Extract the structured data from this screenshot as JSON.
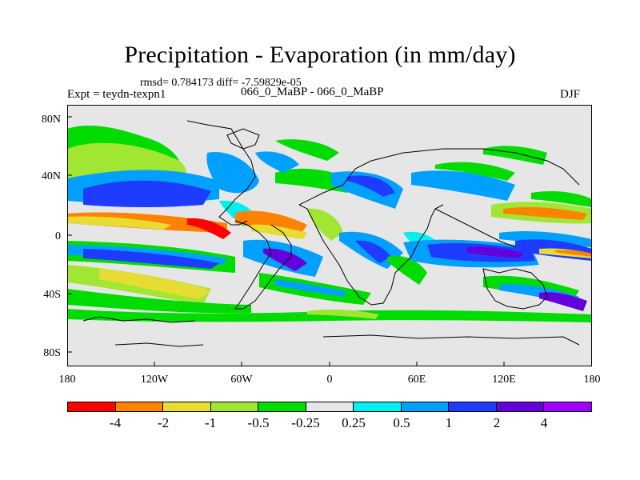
{
  "title": "Precipitation - Evaporation (in mm/day)",
  "subtitle": "rmsd= 0.784173 diff= -7.59829e-05",
  "experiment": "Expt = teydn-texpn1",
  "period": "066_0_MaBP - 066_0_MaBP",
  "season": "DJF",
  "lat_labels": [
    "80N",
    "40N",
    "0",
    "40S",
    "80S"
  ],
  "lon_labels": [
    "180",
    "120W",
    "60W",
    "0",
    "60E",
    "120E",
    "180"
  ],
  "colorbar": {
    "labels": [
      "-4",
      "-2",
      "-1",
      "-0.5",
      "-0.25",
      "0.25",
      "0.5",
      "1",
      "2",
      "4"
    ],
    "colors": [
      "#ff0000",
      "#ff8200",
      "#e6dc32",
      "#a0e632",
      "#00dc00",
      "#e6e6e6",
      "#00f0f0",
      "#00a0ff",
      "#1e3cff",
      "#6400dc",
      "#a000ff"
    ]
  },
  "background_color": "#e6e6e6"
}
